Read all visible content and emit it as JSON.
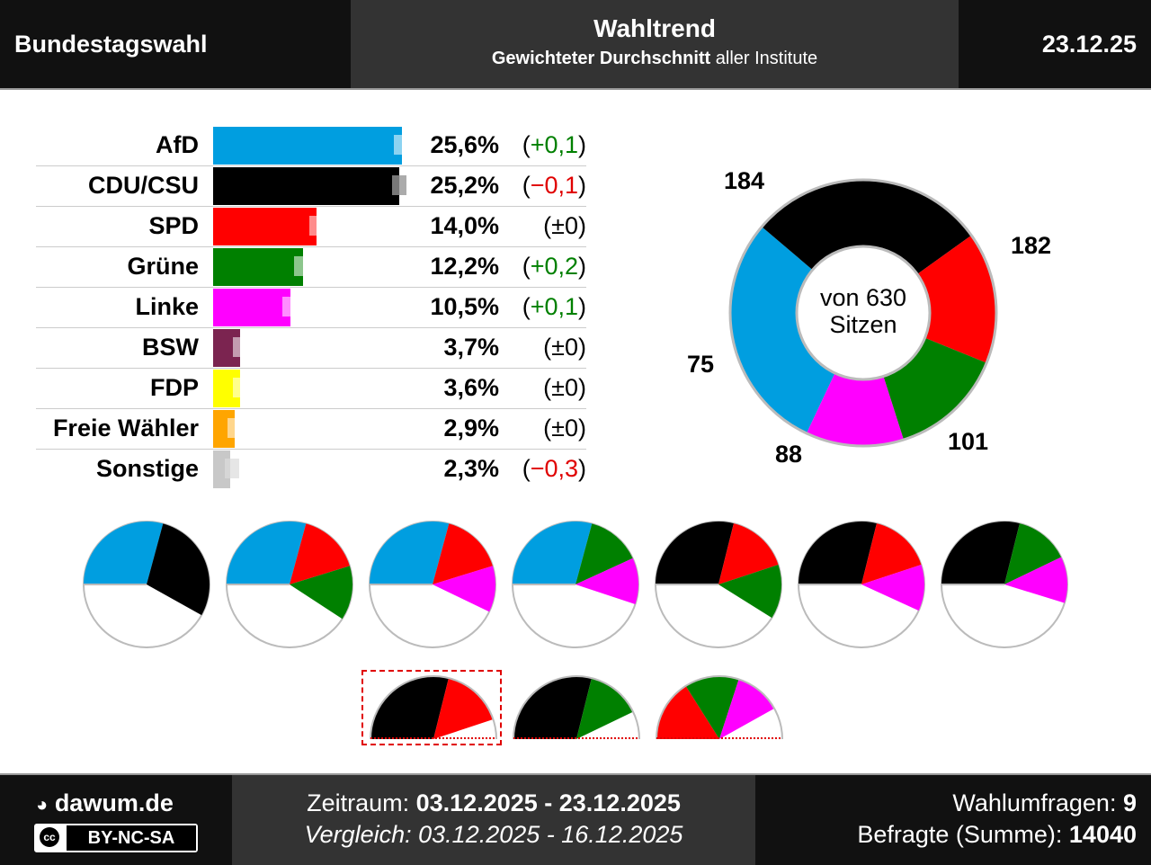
{
  "header": {
    "left": "Bundestagswahl",
    "title": "Wahltrend",
    "subtitle_bold": "Gewichteter Durchschnitt",
    "subtitle_rest": " aller Institute",
    "date": "23.12.25"
  },
  "colors": {
    "AfD": "#009ee0",
    "CDU/CSU": "#000000",
    "SPD": "#ff0000",
    "Grüne": "#008000",
    "Linke": "#ff00ff",
    "BSW": "#7b2450",
    "FDP": "#ffff00",
    "Freie Wähler": "#ffa500",
    "Sonstige": "#c8c8c8"
  },
  "chart_data": [
    {
      "type": "bar",
      "categories": [
        "AfD",
        "CDU/CSU",
        "SPD",
        "Grüne",
        "Linke",
        "BSW",
        "FDP",
        "Freie Wähler",
        "Sonstige"
      ],
      "values": [
        25.6,
        25.2,
        14.0,
        12.2,
        10.5,
        3.7,
        3.6,
        2.9,
        2.3
      ],
      "previous": [
        25.5,
        25.3,
        14.0,
        12.0,
        10.4,
        3.7,
        3.6,
        2.9,
        2.6
      ],
      "value_labels": [
        "25,6%",
        "25,2%",
        "14,0%",
        "12,2%",
        "10,5%",
        "3,7%",
        "3,6%",
        "2,9%",
        "2,3%"
      ],
      "diff_labels": [
        "(+0,1)",
        "(−0,1)",
        "(±0)",
        "(+0,2)",
        "(+0,1)",
        "(±0)",
        "(±0)",
        "(±0)",
        "(−0,3)"
      ],
      "diff_sign": [
        "pos",
        "neg",
        "zero",
        "pos",
        "pos",
        "zero",
        "zero",
        "zero",
        "neg"
      ]
    },
    {
      "type": "pie",
      "categories": [
        "AfD",
        "CDU/CSU",
        "SPD",
        "Grüne",
        "Linke"
      ],
      "values": [
        184,
        182,
        101,
        88,
        75
      ],
      "labels": [
        "184",
        "182",
        "101",
        "88",
        "75"
      ],
      "center_text_1": "von 630",
      "center_text_2": "Sitzen"
    }
  ],
  "coalitions": [
    [
      "AfD",
      "CDU/CSU"
    ],
    [
      "AfD",
      "SPD",
      "Grüne"
    ],
    [
      "AfD",
      "SPD",
      "Linke"
    ],
    [
      "AfD",
      "Grüne",
      "Linke"
    ],
    [
      "CDU/CSU",
      "SPD",
      "Grüne"
    ],
    [
      "CDU/CSU",
      "SPD",
      "Linke"
    ],
    [
      "CDU/CSU",
      "Grüne",
      "Linke"
    ],
    [
      "CDU/CSU",
      "SPD"
    ],
    [
      "CDU/CSU",
      "Grüne"
    ],
    [
      "SPD",
      "Grüne",
      "Linke"
    ]
  ],
  "footer": {
    "site": "dawum.de",
    "license": "BY-NC-SA",
    "cc": "cc",
    "zeitraum_label": "Zeitraum: ",
    "zeitraum": "03.12.2025 - 23.12.2025",
    "vergleich_label": "Vergleich: ",
    "vergleich": "03.12.2025 - 16.12.2025",
    "umfragen_label": "Wahlumfragen: ",
    "umfragen": "9",
    "befragte_label": "Befragte (Summe): ",
    "befragte": "14040"
  }
}
